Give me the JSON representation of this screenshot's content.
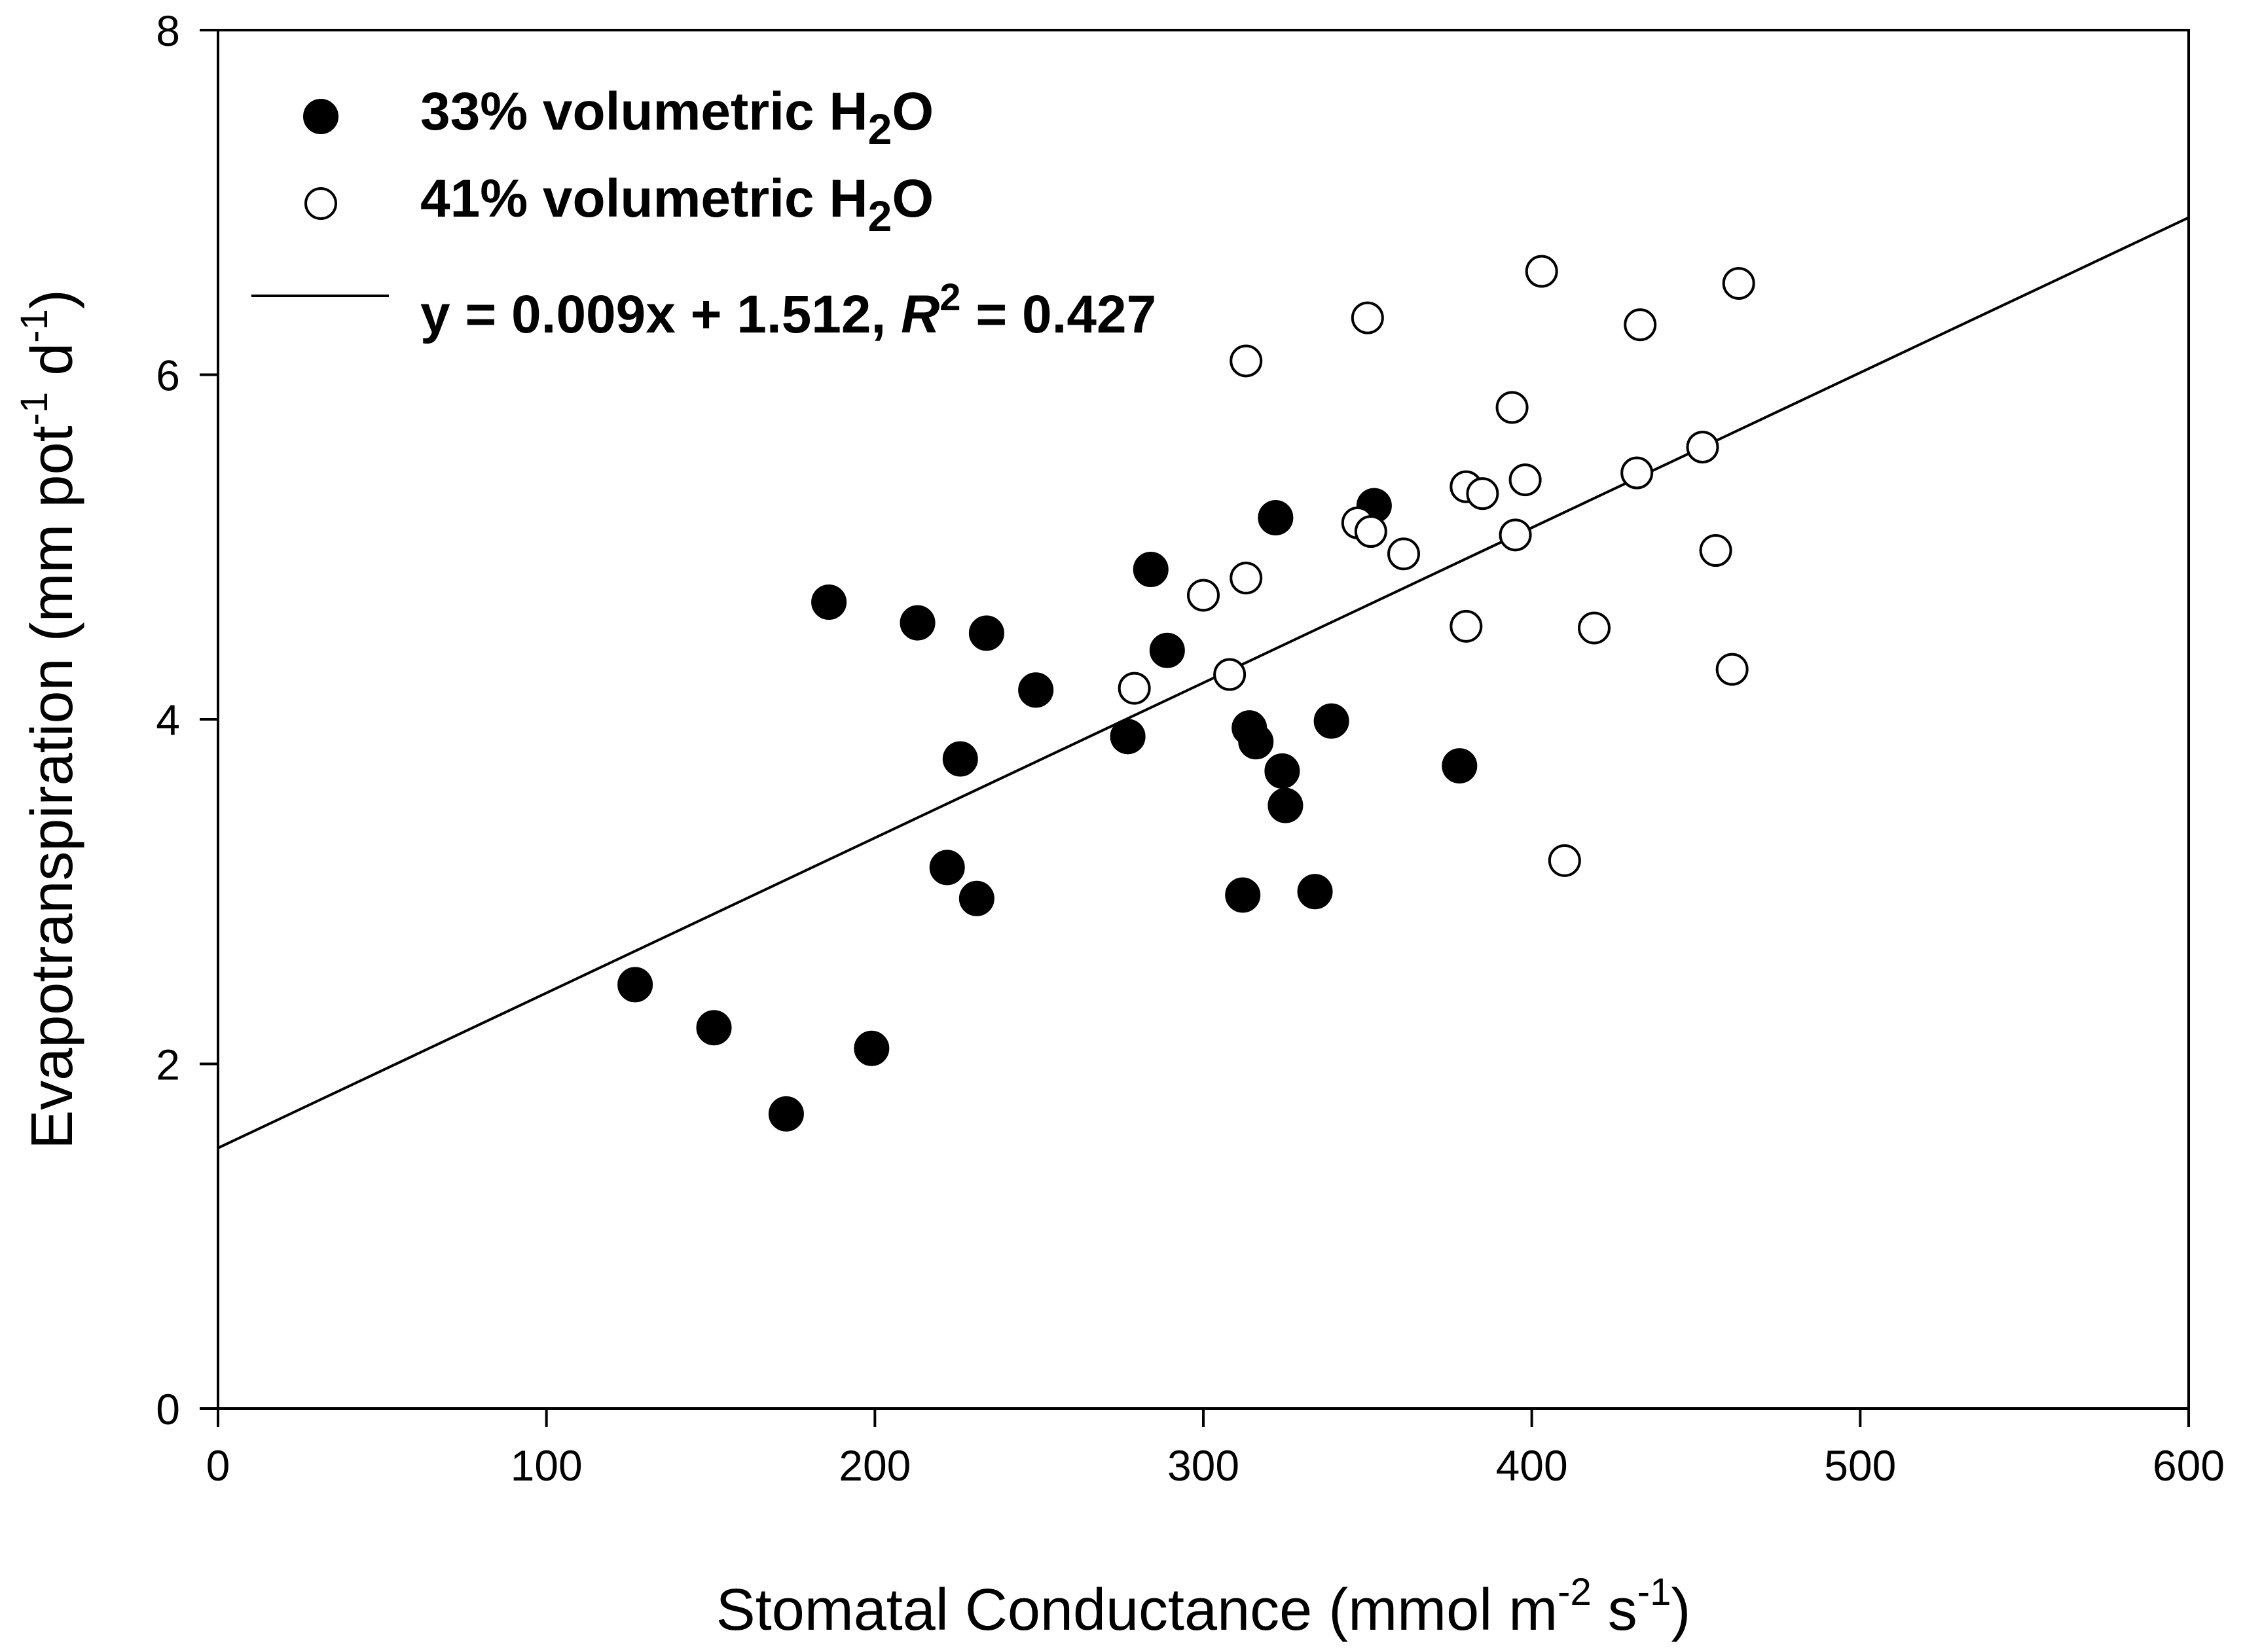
{
  "chart_data": {
    "type": "scatter",
    "title": "",
    "xlabel": {
      "text": "Stomatal Conductance (mmol m",
      "sup1": "-2",
      "mid": " s",
      "sup2": "-1",
      "end": ")"
    },
    "ylabel": {
      "text": "Evapotranspiration (mm pot",
      "sup1": "-1",
      "mid": " d",
      "sup2": "-1",
      "end": ")"
    },
    "xlim": [
      0,
      600
    ],
    "ylim": [
      0,
      8
    ],
    "xticks": [
      "0",
      "100",
      "200",
      "300",
      "400",
      "500",
      "600"
    ],
    "yticks": [
      "0",
      "2",
      "4",
      "6",
      "8"
    ],
    "grid": false,
    "legend_position": "top-left",
    "series": [
      {
        "name": "33% volumetric H2O",
        "legend_text": "33% volumetric H",
        "legend_sub": "2",
        "legend_end": "O",
        "marker": "filled-circle",
        "color": "#000000",
        "points": [
          [
            127,
            2.46
          ],
          [
            151,
            2.21
          ],
          [
            173,
            1.71
          ],
          [
            186,
            4.68
          ],
          [
            199,
            2.09
          ],
          [
            213,
            4.56
          ],
          [
            222,
            3.14
          ],
          [
            226,
            3.77
          ],
          [
            231,
            2.96
          ],
          [
            234,
            4.5
          ],
          [
            249,
            4.17
          ],
          [
            277,
            3.9
          ],
          [
            284,
            4.87
          ],
          [
            289,
            4.4
          ],
          [
            312,
            2.98
          ],
          [
            314,
            3.95
          ],
          [
            316,
            3.87
          ],
          [
            322,
            5.17
          ],
          [
            324,
            3.7
          ],
          [
            325,
            3.5
          ],
          [
            334,
            3.0
          ],
          [
            339,
            3.99
          ],
          [
            352,
            5.24
          ],
          [
            378,
            3.73
          ]
        ]
      },
      {
        "name": "41% volumetric H2O",
        "legend_text": "41% volumetric H",
        "legend_sub": "2",
        "legend_end": "O",
        "marker": "open-circle",
        "color": "#000000",
        "points": [
          [
            279,
            4.18
          ],
          [
            300,
            4.72
          ],
          [
            308,
            4.26
          ],
          [
            313,
            4.82
          ],
          [
            313,
            6.08
          ],
          [
            347,
            5.14
          ],
          [
            350,
            6.33
          ],
          [
            351,
            5.09
          ],
          [
            361,
            4.96
          ],
          [
            380,
            5.35
          ],
          [
            380,
            4.54
          ],
          [
            385,
            5.31
          ],
          [
            394,
            5.81
          ],
          [
            395,
            5.07
          ],
          [
            398,
            5.39
          ],
          [
            403,
            6.6
          ],
          [
            410,
            3.18
          ],
          [
            419,
            4.53
          ],
          [
            432,
            5.43
          ],
          [
            433,
            6.29
          ],
          [
            452,
            5.58
          ],
          [
            456,
            4.98
          ],
          [
            461,
            4.29
          ],
          [
            463,
            6.53
          ]
        ]
      }
    ],
    "fit_line": {
      "slope": 0.009,
      "intercept": 1.512,
      "x_range": [
        0,
        600
      ],
      "legend_text": "y = 0.009x + 1.512, ",
      "legend_r": "R",
      "legend_r_sup": "2",
      "legend_end": " = 0.427"
    }
  }
}
